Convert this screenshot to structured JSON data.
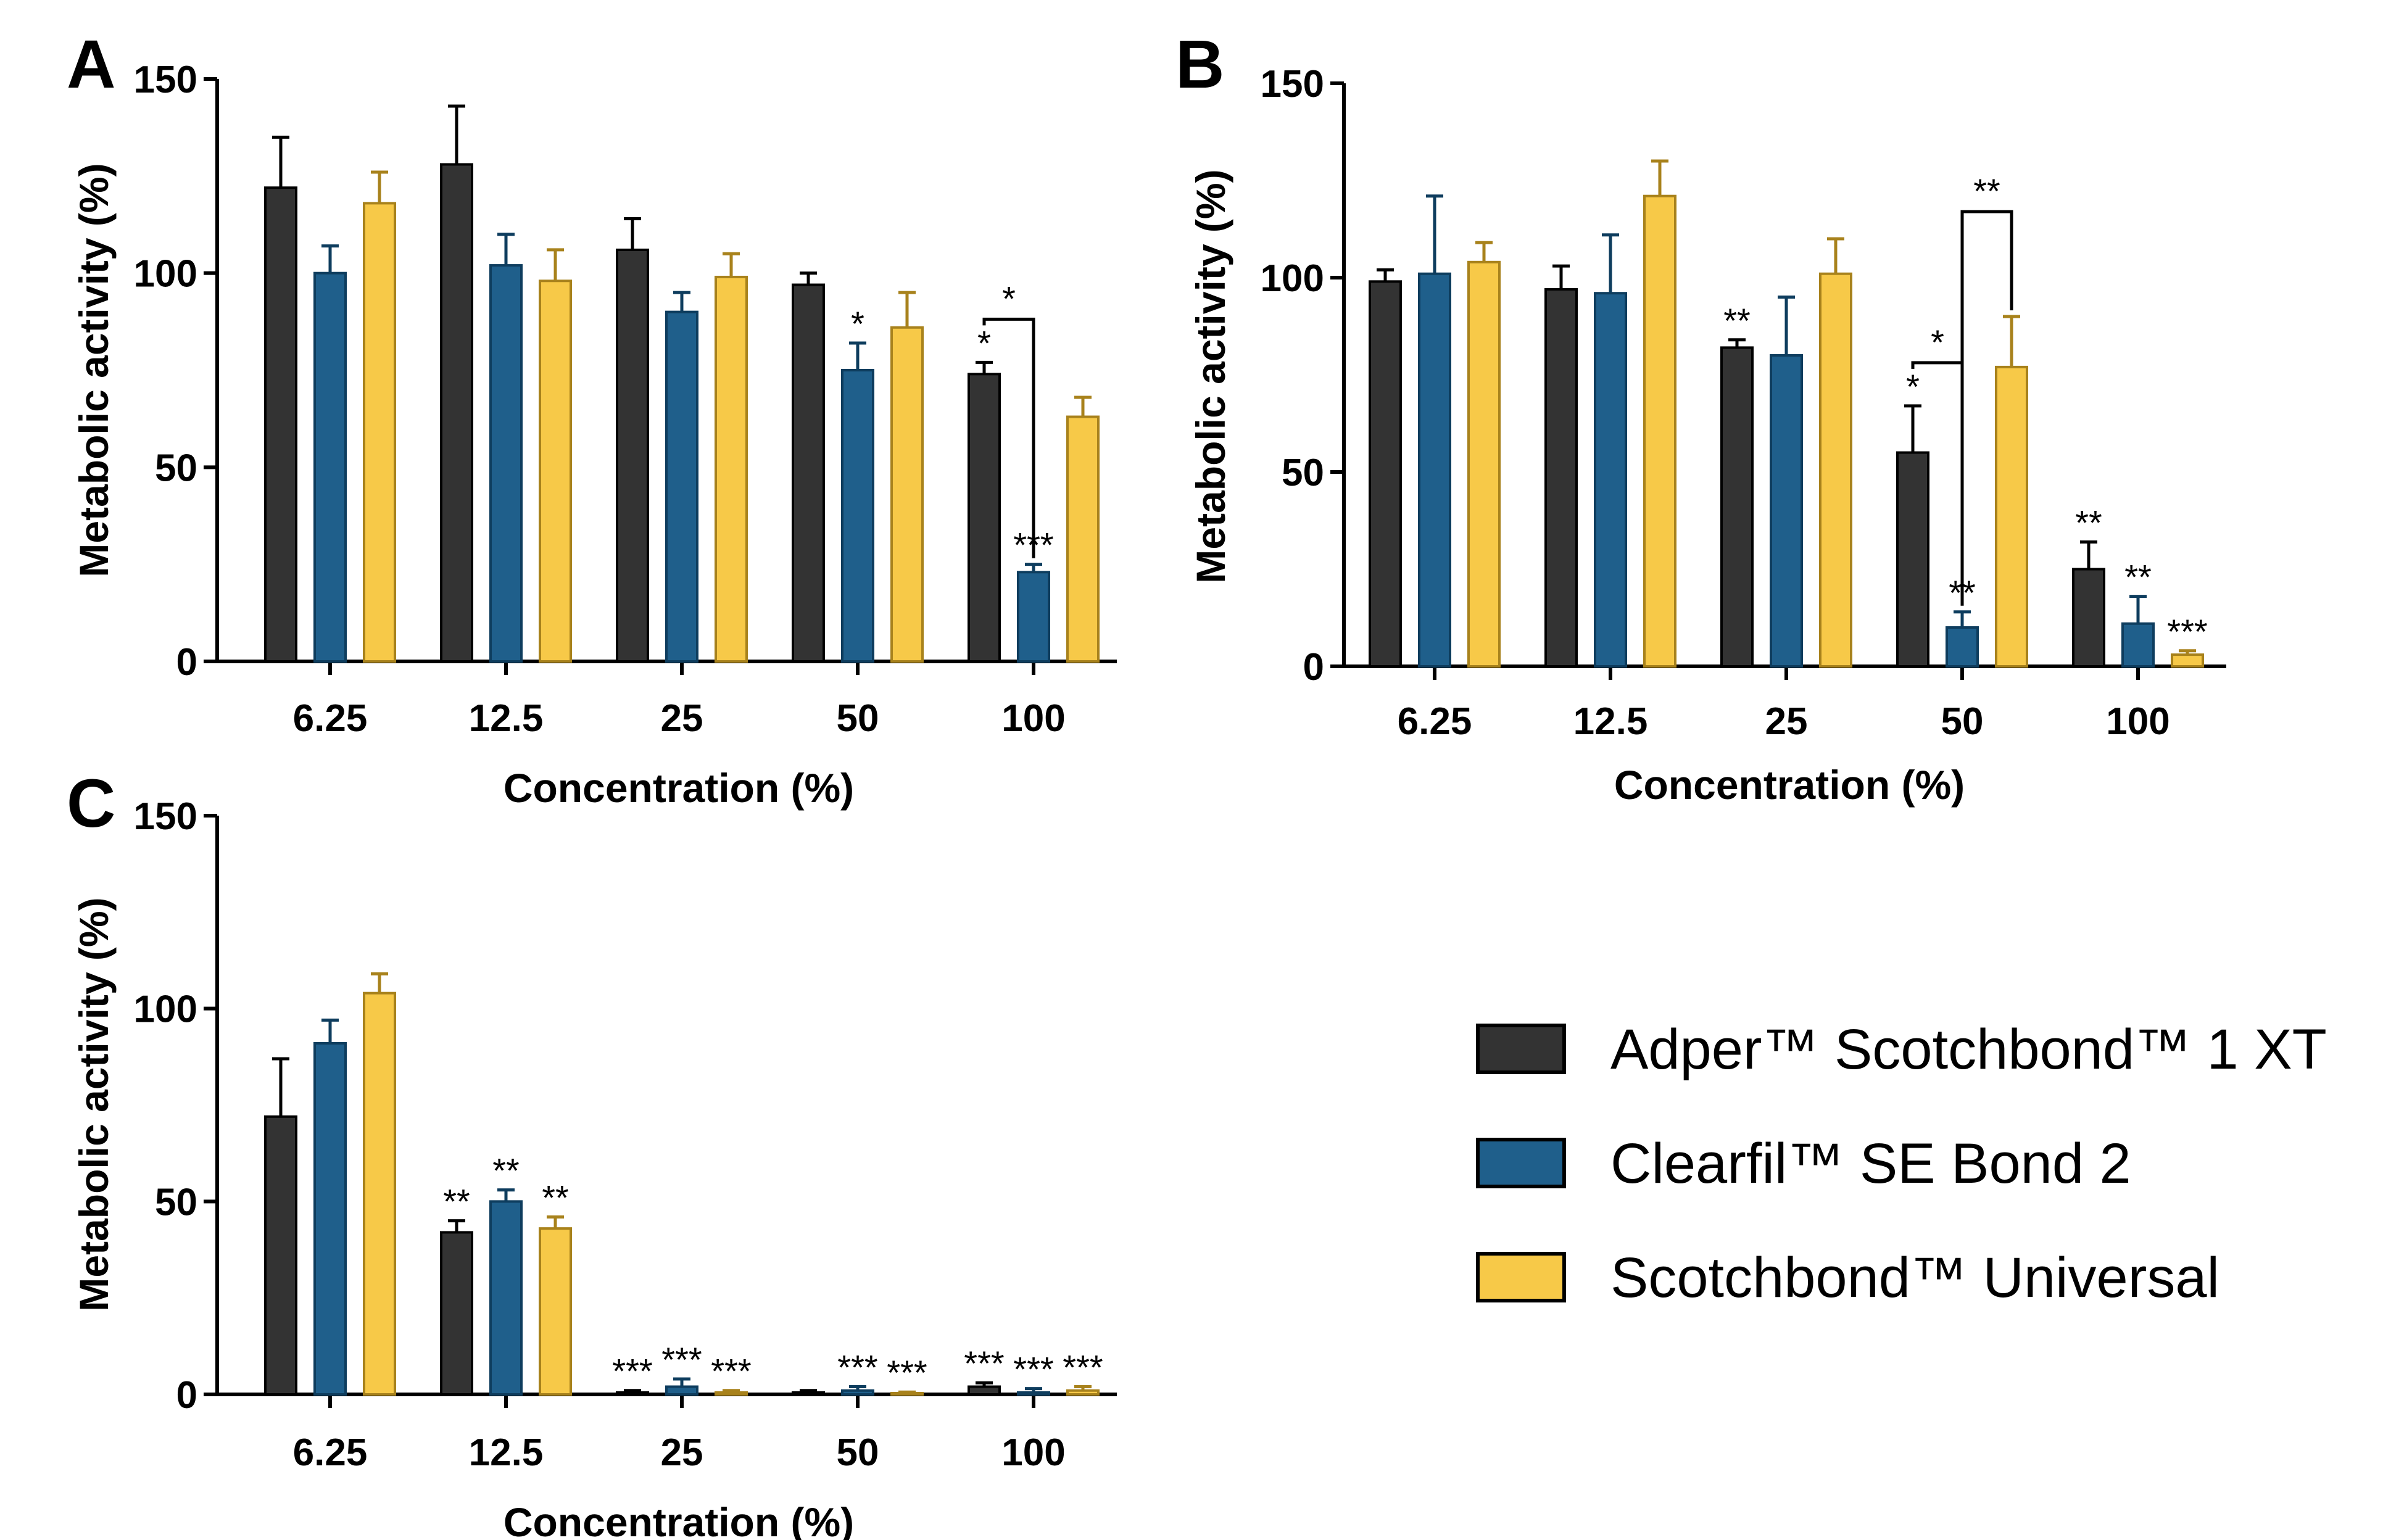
{
  "chart_data": [
    {
      "panel": "A",
      "type": "bar",
      "categories": [
        "6.25",
        "12.5",
        "25",
        "50",
        "100"
      ],
      "ylabel": "Metabolic activity (%)",
      "xlabel": "Concentration (%)",
      "ylim": [
        0,
        150
      ],
      "yticks": [
        "0",
        "50",
        "100",
        "150"
      ],
      "series": [
        {
          "name": "Adper™ Scotchbond™ 1 XT",
          "values": [
            122,
            128,
            106,
            97,
            74
          ],
          "errors": [
            13,
            15,
            8,
            3,
            3
          ],
          "sig": [
            "",
            "",
            "",
            "",
            "*"
          ]
        },
        {
          "name": "Clearfil™ SE Bond 2",
          "values": [
            100,
            102,
            90,
            75,
            23
          ],
          "errors": [
            7,
            8,
            5,
            7,
            2
          ],
          "sig": [
            "",
            "",
            "",
            "*",
            "***"
          ]
        },
        {
          "name": "Scotchbond™ Universal",
          "values": [
            118,
            98,
            99,
            86,
            63
          ],
          "errors": [
            8,
            8,
            6,
            9,
            5
          ],
          "sig": [
            "",
            "",
            "",
            "",
            ""
          ]
        }
      ],
      "brackets": [
        {
          "category": 4,
          "from": 0,
          "to": 1,
          "label": "*"
        }
      ]
    },
    {
      "panel": "B",
      "type": "bar",
      "categories": [
        "6.25",
        "12.5",
        "25",
        "50",
        "100"
      ],
      "ylabel": "Metabolic activity (%)",
      "xlabel": "Concentration (%)",
      "ylim": [
        0,
        150
      ],
      "yticks": [
        "0",
        "50",
        "100",
        "150"
      ],
      "series": [
        {
          "name": "Adper™ Scotchbond™ 1 XT",
          "values": [
            99,
            97,
            82,
            55,
            25
          ],
          "errors": [
            3,
            6,
            2,
            12,
            7
          ],
          "sig": [
            "",
            "",
            "**",
            "*",
            "**"
          ]
        },
        {
          "name": "Clearfil™ SE Bond 2",
          "values": [
            101,
            96,
            80,
            10,
            11
          ],
          "errors": [
            20,
            15,
            15,
            4,
            7
          ],
          "sig": [
            "",
            "",
            "",
            "**",
            "**"
          ]
        },
        {
          "name": "Scotchbond™ Universal",
          "values": [
            104,
            121,
            101,
            77,
            3
          ],
          "errors": [
            5,
            9,
            9,
            13,
            1
          ],
          "sig": [
            "",
            "",
            "",
            "",
            "***"
          ]
        }
      ],
      "brackets": [
        {
          "category": 3,
          "from": 0,
          "to": 1,
          "label": "*"
        },
        {
          "category": 3,
          "from": 1,
          "to": 2,
          "label": "**"
        }
      ]
    },
    {
      "panel": "C",
      "type": "bar",
      "categories": [
        "6.25",
        "12.5",
        "25",
        "50",
        "100"
      ],
      "ylabel": "Metabolic activity (%)",
      "xlabel": "Concentration (%)",
      "ylim": [
        0,
        150
      ],
      "yticks": [
        "0",
        "50",
        "100",
        "150"
      ],
      "series": [
        {
          "name": "Adper™ Scotchbond™ 1 XT",
          "values": [
            72,
            42,
            0.5,
            0.5,
            2
          ],
          "errors": [
            15,
            3,
            0.5,
            0.5,
            1
          ],
          "sig": [
            "",
            "**",
            "***",
            "",
            "***"
          ]
        },
        {
          "name": "Clearfil™ SE Bond 2",
          "values": [
            91,
            50,
            2,
            1,
            0.5
          ],
          "errors": [
            6,
            3,
            2,
            1,
            1
          ],
          "sig": [
            "",
            "**",
            "***",
            "***",
            "***"
          ]
        },
        {
          "name": "Scotchbond™ Universal",
          "values": [
            104,
            43,
            0.5,
            0.3,
            1
          ],
          "errors": [
            5,
            3,
            0.5,
            0.3,
            1
          ],
          "sig": [
            "",
            "**",
            "***",
            "***",
            "***"
          ]
        }
      ],
      "brackets": []
    }
  ],
  "legend": {
    "items": [
      {
        "label": "Adper™ Scotchbond™ 1 XT",
        "color": "#333333"
      },
      {
        "label": "Clearfil™ SE Bond 2",
        "color": "#1f5f8b"
      },
      {
        "label": "Scotchbond™ Universal",
        "color": "#f7c948"
      }
    ]
  },
  "colors": {
    "fills": [
      "#333333",
      "#1f5f8b",
      "#f7c948"
    ],
    "edges": [
      "#000000",
      "#0e3d5e",
      "#a8821c"
    ]
  }
}
